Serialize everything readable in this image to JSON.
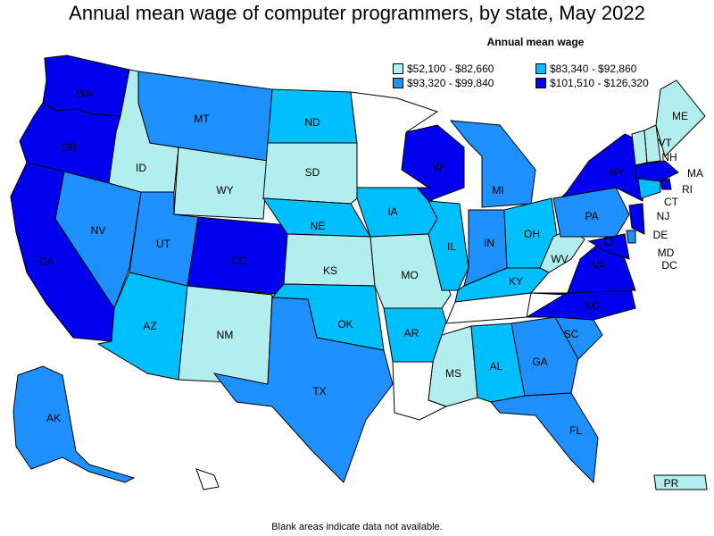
{
  "title": "Annual mean wage of computer programmers, by state, May 2022",
  "legend": {
    "title": "Annual mean wage",
    "items": [
      {
        "label": "$52,100 - $82,660",
        "color": "#b2eeee"
      },
      {
        "label": "$83,340 - $92,860",
        "color": "#00bfff"
      },
      {
        "label": "$93,320 - $99,840",
        "color": "#1e90ff"
      },
      {
        "label": "$101,510 - $126,320",
        "color": "#0000ee"
      }
    ]
  },
  "colors": {
    "no_data": "#ffffff",
    "border": "#000000"
  },
  "states": [
    {
      "abbr": "WA",
      "bin": 3
    },
    {
      "abbr": "OR",
      "bin": 3
    },
    {
      "abbr": "CA",
      "bin": 3
    },
    {
      "abbr": "NV",
      "bin": 2
    },
    {
      "abbr": "ID",
      "bin": 0
    },
    {
      "abbr": "MT",
      "bin": 2
    },
    {
      "abbr": "WY",
      "bin": 0
    },
    {
      "abbr": "UT",
      "bin": 2
    },
    {
      "abbr": "CO",
      "bin": 3
    },
    {
      "abbr": "AZ",
      "bin": 1
    },
    {
      "abbr": "NM",
      "bin": 0
    },
    {
      "abbr": "ND",
      "bin": 1
    },
    {
      "abbr": "SD",
      "bin": 0
    },
    {
      "abbr": "NE",
      "bin": 1
    },
    {
      "abbr": "KS",
      "bin": 0
    },
    {
      "abbr": "OK",
      "bin": 1
    },
    {
      "abbr": "TX",
      "bin": 2
    },
    {
      "abbr": "IA",
      "bin": 1
    },
    {
      "abbr": "MO",
      "bin": 0
    },
    {
      "abbr": "AR",
      "bin": 1
    },
    {
      "abbr": "WI",
      "bin": 3
    },
    {
      "abbr": "IL",
      "bin": 1
    },
    {
      "abbr": "MI",
      "bin": 2
    },
    {
      "abbr": "IN",
      "bin": 2
    },
    {
      "abbr": "OH",
      "bin": 1
    },
    {
      "abbr": "KY",
      "bin": 1
    },
    {
      "abbr": "MS",
      "bin": 0
    },
    {
      "abbr": "AL",
      "bin": 1
    },
    {
      "abbr": "GA",
      "bin": 2
    },
    {
      "abbr": "FL",
      "bin": 2
    },
    {
      "abbr": "SC",
      "bin": 2
    },
    {
      "abbr": "NC",
      "bin": 3
    },
    {
      "abbr": "VA",
      "bin": 3
    },
    {
      "abbr": "WV",
      "bin": 0
    },
    {
      "abbr": "PA",
      "bin": 2
    },
    {
      "abbr": "NY",
      "bin": 3
    },
    {
      "abbr": "VT",
      "bin": 0
    },
    {
      "abbr": "NH",
      "bin": 0
    },
    {
      "abbr": "ME",
      "bin": 0
    },
    {
      "abbr": "MA",
      "bin": 3
    },
    {
      "abbr": "RI",
      "bin": 3
    },
    {
      "abbr": "CT",
      "bin": 1
    },
    {
      "abbr": "NJ",
      "bin": 3
    },
    {
      "abbr": "DE",
      "bin": 2
    },
    {
      "abbr": "MD",
      "bin": 3
    },
    {
      "abbr": "DC",
      "bin": 3
    },
    {
      "abbr": "AK",
      "bin": 2
    },
    {
      "abbr": "PR",
      "bin": 0
    },
    {
      "abbr": "MN",
      "bin": null
    },
    {
      "abbr": "TN",
      "bin": null
    },
    {
      "abbr": "LA",
      "bin": null
    },
    {
      "abbr": "HI",
      "bin": null
    }
  ],
  "footnote": "Blank areas indicate data not available."
}
